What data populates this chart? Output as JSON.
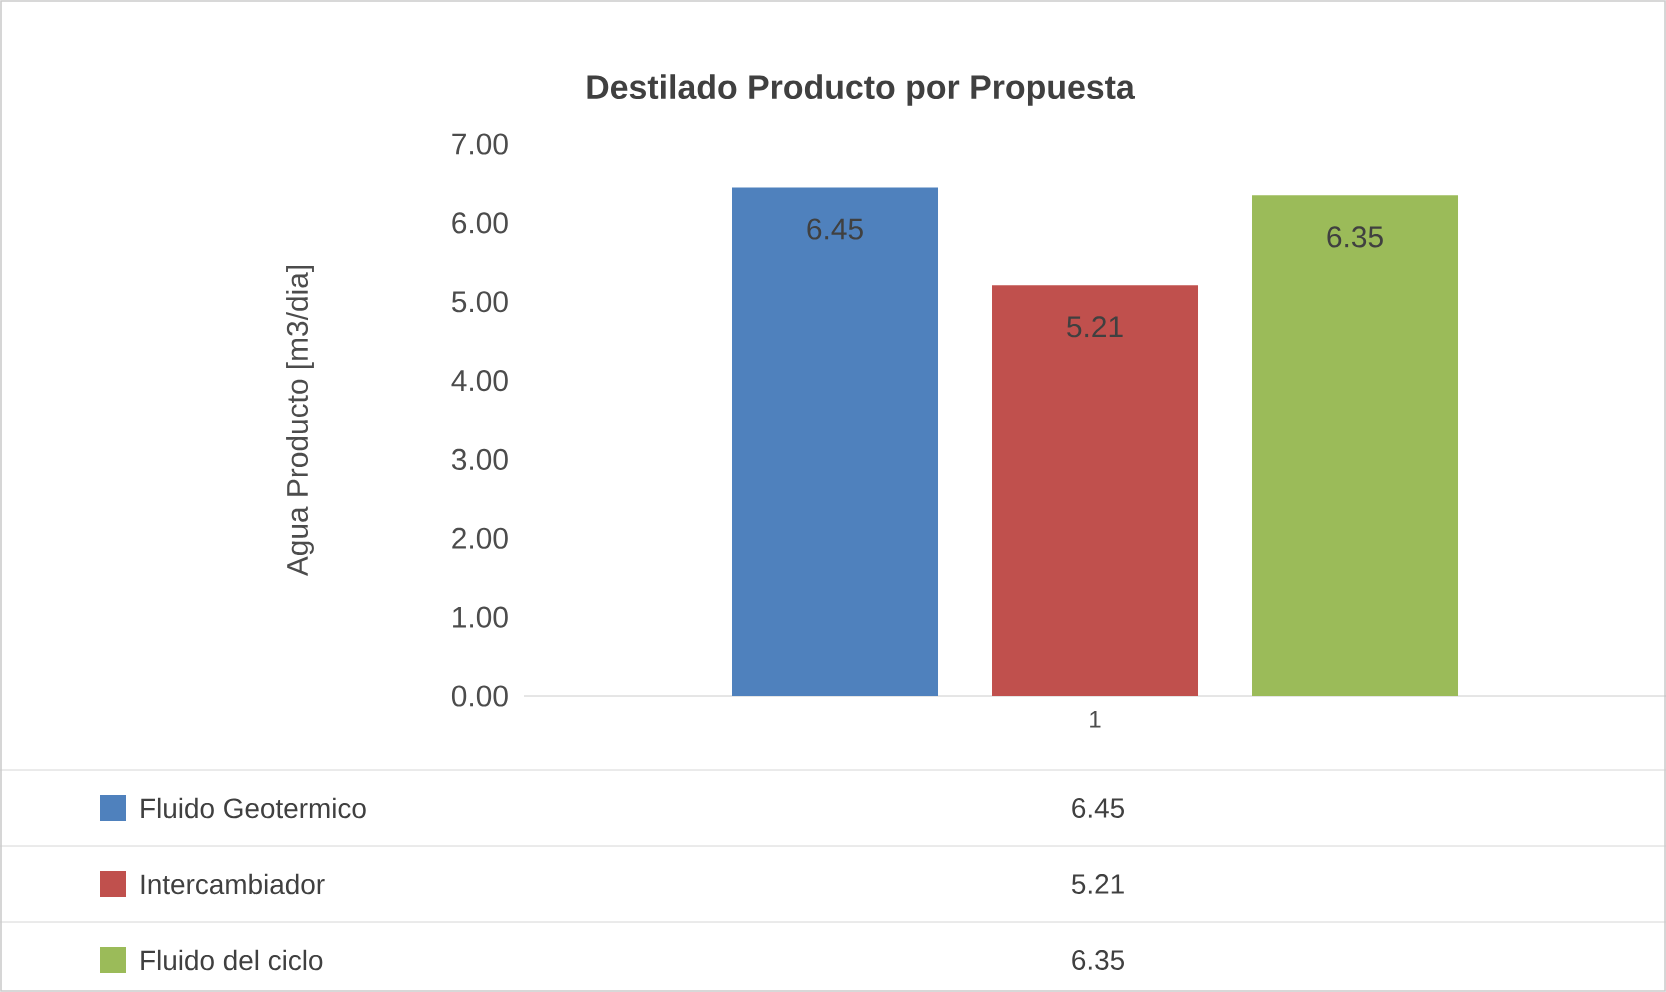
{
  "chart_data": {
    "type": "bar",
    "title": "Destilado Producto por Propuesta",
    "ylabel": "Agua Producto [m3/dia]",
    "categories": [
      "1"
    ],
    "series": [
      {
        "name": "Fluido Geotermico",
        "color": "#4f81bd",
        "values": [
          6.45
        ],
        "value_labels": [
          "6.45"
        ]
      },
      {
        "name": "Intercambiador",
        "color": "#c0504d",
        "values": [
          5.21
        ],
        "value_labels": [
          "5.21"
        ]
      },
      {
        "name": "Fluido del ciclo",
        "color": "#9bbb59",
        "values": [
          6.35
        ],
        "value_labels": [
          "6.35"
        ]
      }
    ],
    "ylim": [
      0,
      7
    ],
    "yticks": [
      {
        "value": 0,
        "label": "0.00"
      },
      {
        "value": 1,
        "label": "1.00"
      },
      {
        "value": 2,
        "label": "2.00"
      },
      {
        "value": 3,
        "label": "3.00"
      },
      {
        "value": 4,
        "label": "4.00"
      },
      {
        "value": 5,
        "label": "5.00"
      },
      {
        "value": 6,
        "label": "6.00"
      },
      {
        "value": 7,
        "label": "7.00"
      }
    ],
    "legend": "bottom",
    "grid": false
  }
}
